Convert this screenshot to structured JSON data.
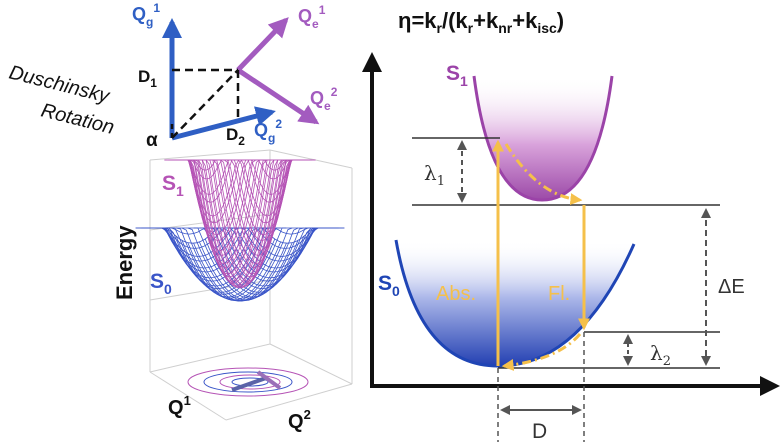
{
  "efficiency_formula": {
    "eta": "η=k",
    "sub_r1": "r",
    "mid1": "/(k",
    "sub_r2": "r",
    "mid2": "+k",
    "sub_nr": "nr",
    "mid3": "+k",
    "sub_isc": "isc",
    "close": ")"
  },
  "rotation": {
    "title_line1": "Duschinsky",
    "title_line2": "Rotation",
    "qg1_main": "Q",
    "qg1_sub": "g",
    "qg1_sup": "1",
    "qg2_main": "Q",
    "qg2_sub": "g",
    "qg2_sup": "2",
    "qe1_main": "Q",
    "qe1_sub": "e",
    "qe1_sup": "1",
    "qe2_main": "Q",
    "qe2_sub": "e",
    "qe2_sup": "2",
    "d1_main": "D",
    "d1_sub": "1",
    "d2_main": "D",
    "d2_sub": "2",
    "alpha": "α",
    "colors": {
      "ground": "#2f5fc4",
      "excited": "#a35bbf",
      "dash": "#111111"
    }
  },
  "surface_plot": {
    "s1_main": "S",
    "s1_sub": "1",
    "s0_main": "S",
    "s0_sub": "0",
    "axis_energy": "Energy",
    "q1_main": "Q",
    "q1_sup": "1",
    "q2_main": "Q",
    "q2_sup": "2",
    "colors": {
      "s1_mesh": "#b553b5",
      "s0_mesh": "#3a55c8"
    }
  },
  "energy_diagram": {
    "s1_main": "S",
    "s1_sub": "1",
    "s0_main": "S",
    "s0_sub": "0",
    "lambda1_main": "λ",
    "lambda1_sub": "1",
    "lambda2_main": "λ",
    "lambda2_sub": "2",
    "delta_e": "ΔE",
    "absorption": "Abs.",
    "fluorescence": "Fl.",
    "displacement": "D",
    "colors": {
      "s1": "#9b43a8",
      "s0": "#1f45b5",
      "transition": "#f5c04a",
      "axis": "#111111"
    }
  }
}
